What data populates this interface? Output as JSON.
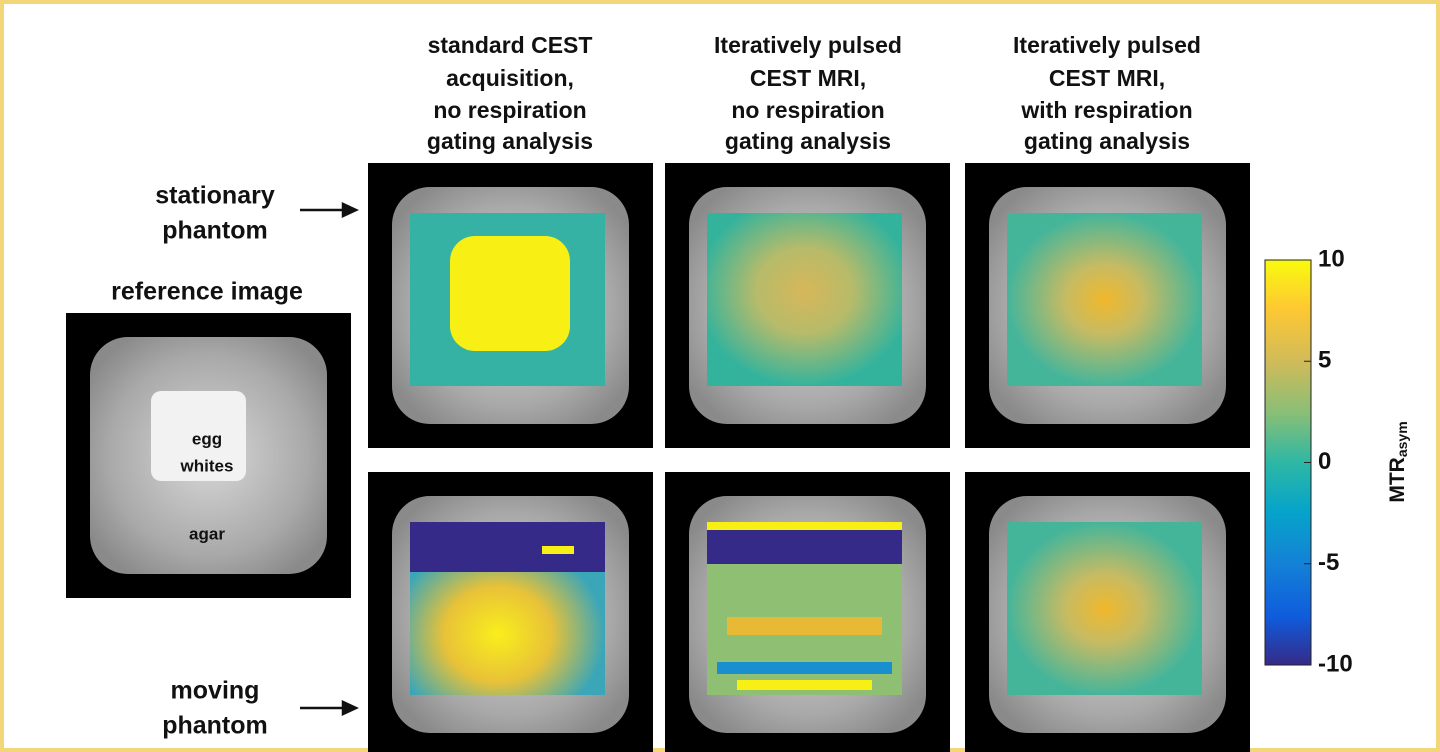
{
  "columns": [
    [
      "standard CEST",
      "acquisition,",
      "no respiration",
      "gating analysis"
    ],
    [
      "Iteratively pulsed",
      "CEST MRI,",
      "no respiration",
      "gating analysis"
    ],
    [
      "Iteratively pulsed",
      "CEST MRI,",
      "with respiration",
      "gating analysis"
    ]
  ],
  "rows": [
    [
      "stationary",
      "phantom"
    ],
    [
      "moving",
      "phantom"
    ]
  ],
  "reference": {
    "title": "reference image",
    "labels": [
      "egg",
      "whites",
      "agar"
    ]
  },
  "colorbar": {
    "label": "MTR",
    "label_sub": "asym",
    "lim": [
      -10,
      10
    ],
    "ticks": [
      10,
      5,
      0,
      -5,
      -10
    ]
  }
}
